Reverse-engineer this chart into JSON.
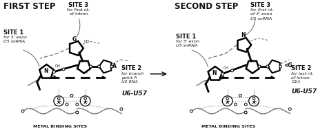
{
  "bg_color": "#ffffff",
  "fig_width": 4.74,
  "fig_height": 1.91,
  "dpi": 100,
  "left_title": "FIRST STEP",
  "right_title": "SECOND STEP",
  "left_site3_label": "SITE 3",
  "left_site3_sub": "for first nt.\nof intron",
  "left_site1_label": "SITE 1",
  "left_site1_sub": "for 5' exon\nU5 snRNA",
  "left_site2_label": "SITE 2",
  "left_site2_sub": "for branch\npoint A\nU2 RNA",
  "left_site2_bold": "U6-U57",
  "left_mbs": "METAL BINDING SITES",
  "right_site3_label": "SITE 3",
  "right_site3_sub": "for first nt.\nof 3' exon\nU5 snRNA",
  "right_site1_label": "SITE 1",
  "right_site1_sub": "for 5' exon\nU5 snRNA",
  "right_site2_label": "SITE 2",
  "right_site2_sub": "for last nt.\nof intron\nG1A",
  "right_site2_bold": "U6-U57",
  "right_mbs": "METAL BINDING SITES",
  "text_color": "#111111",
  "gray_color": "#777777",
  "dark_color": "#222222"
}
